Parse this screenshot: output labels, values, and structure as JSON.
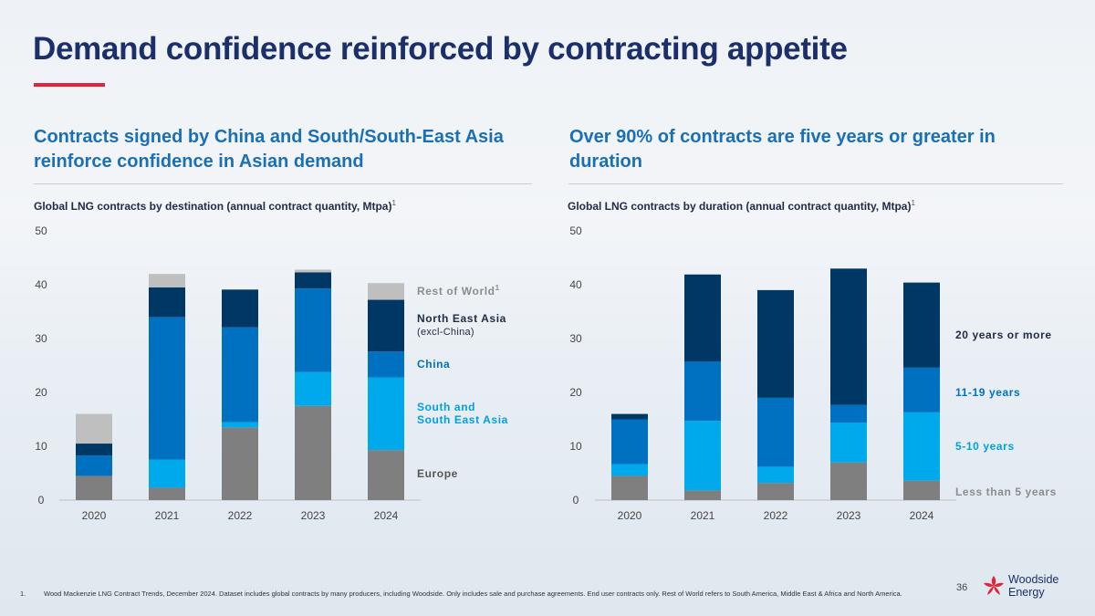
{
  "page": {
    "title": "Demand confidence reinforced by contracting appetite",
    "left_heading": "Contracts signed by China and South/South-East Asia reinforce confidence in Asian demand",
    "right_heading": "Over 90% of contracts are five years or greater in duration",
    "left_subtitle": "Global LNG contracts by destination (annual contract quantity, Mtpa)",
    "right_subtitle": "Global LNG contracts by duration (annual contract quantity, Mtpa)",
    "superscript": "1",
    "footnote_number": "1.",
    "footnote_text": "Wood Mackenzie LNG Contract Trends, December 2024. Dataset includes global contracts by many producers, including Woodside. Only includes sale and purchase agreements. End user contracts only. Rest of World refers to South America, Middle East & Africa and North America.",
    "page_number": "36",
    "logo": {
      "line1": "Woodside",
      "line2": "Energy",
      "icon": "woodside-flower-icon"
    }
  },
  "chart_data": [
    {
      "type": "bar",
      "stacked": true,
      "title": "Global LNG contracts by destination (annual contract quantity, Mtpa)",
      "categories": [
        "2020",
        "2021",
        "2022",
        "2023",
        "2024"
      ],
      "ylim": [
        0,
        50
      ],
      "yticks": [
        "0",
        "10",
        "20",
        "30",
        "40",
        "50"
      ],
      "grid": false,
      "legend_position": "right",
      "series": [
        {
          "name": "Europe",
          "legend_label": "Europe",
          "color": "#7f7f7f",
          "label_color": "#555555",
          "values": [
            4.5,
            2.3,
            13.5,
            17.5,
            9.3
          ]
        },
        {
          "name": "South and South East Asia",
          "legend_label": "South and South East Asia",
          "color": "#00a9ec",
          "label_color": "#00a0df",
          "values": [
            0,
            5.2,
            1.0,
            6.3,
            13.5
          ]
        },
        {
          "name": "China",
          "legend_label": "China",
          "color": "#0070c0",
          "label_color": "#0070c0",
          "values": [
            3.8,
            26.5,
            17.6,
            15.5,
            4.8
          ]
        },
        {
          "name": "North East Asia (excl-China)",
          "legend_label": "North East Asia",
          "legend_sub": "(excl-China)",
          "color": "#003865",
          "label_color": "#1f2a44",
          "values": [
            2.2,
            5.5,
            7.0,
            3.0,
            9.6
          ]
        },
        {
          "name": "Rest of World",
          "legend_label": "Rest of World",
          "legend_sup": "1",
          "color": "#bfbfbf",
          "label_color": "#8c8c8c",
          "values": [
            5.5,
            2.5,
            0,
            0.5,
            3.1
          ]
        }
      ]
    },
    {
      "type": "bar",
      "stacked": true,
      "title": "Global LNG contracts by duration (annual contract quantity, Mtpa)",
      "categories": [
        "2020",
        "2021",
        "2022",
        "2023",
        "2024"
      ],
      "ylim": [
        0,
        50
      ],
      "yticks": [
        "0",
        "10",
        "20",
        "30",
        "40",
        "50"
      ],
      "grid": false,
      "legend_position": "right",
      "series": [
        {
          "name": "Less than 5 years",
          "legend_label": "Less than 5 years",
          "color": "#7f7f7f",
          "label_color": "#8c8c8c",
          "values": [
            4.5,
            1.8,
            3.2,
            7.0,
            3.6
          ]
        },
        {
          "name": "5-10 years",
          "legend_label": "5-10 years",
          "color": "#00a9ec",
          "label_color": "#00a0df",
          "values": [
            2.2,
            12.9,
            3.0,
            7.4,
            12.7
          ]
        },
        {
          "name": "11-19 years",
          "legend_label": "11-19 years",
          "color": "#0070c0",
          "label_color": "#0070c0",
          "values": [
            8.3,
            11.0,
            12.8,
            3.3,
            8.3
          ]
        },
        {
          "name": "20 years or more",
          "legend_label": "20 years or more",
          "color": "#003865",
          "label_color": "#1f2a44",
          "values": [
            1.0,
            16.2,
            20.0,
            25.3,
            15.8
          ]
        }
      ]
    }
  ]
}
